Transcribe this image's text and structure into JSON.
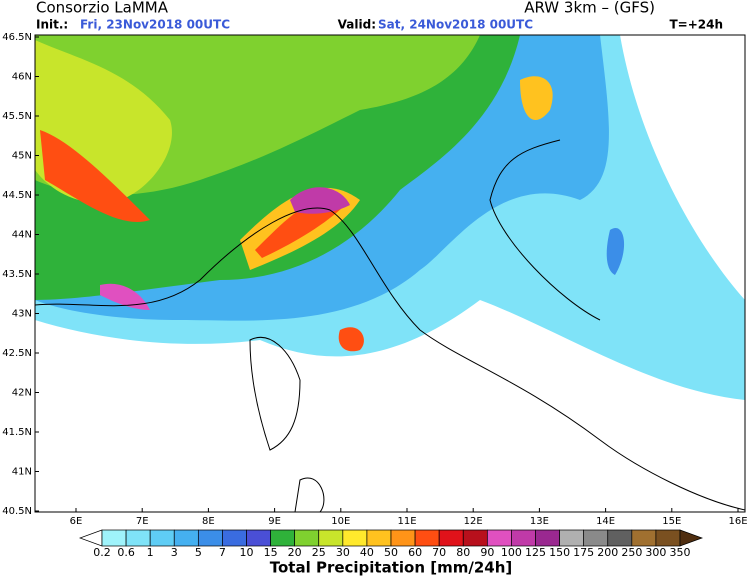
{
  "header": {
    "left_title": "Consorzio LaMMA",
    "init_label": "Init.:",
    "init_value": "Fri, 23Nov2018 00UTC",
    "right_title": "ARW 3km – (GFS)",
    "valid_label": "Valid:",
    "valid_value": "Sat, 24Nov2018 00UTC",
    "lead_time": "T=+24h"
  },
  "map": {
    "lon_labels": [
      "6E",
      "7E",
      "8E",
      "9E",
      "10E",
      "11E",
      "12E",
      "13E",
      "14E",
      "15E",
      "16E"
    ],
    "lat_labels": [
      "46.5N",
      "46N",
      "45.5N",
      "45N",
      "44.5N",
      "44N",
      "43.5N",
      "43N",
      "42.5N",
      "42N",
      "41.5N",
      "41N",
      "40.5N"
    ]
  },
  "colorbar": {
    "levels": [
      "0.2",
      "0.6",
      "1",
      "3",
      "5",
      "7",
      "10",
      "15",
      "20",
      "25",
      "30",
      "40",
      "50",
      "60",
      "70",
      "80",
      "90",
      "100",
      "125",
      "150",
      "175",
      "200",
      "250",
      "300",
      "350"
    ],
    "colors": [
      "#ffffff",
      "#9ff3fb",
      "#7fe3f8",
      "#5fcdf5",
      "#45b0f0",
      "#3b8ee8",
      "#3a6ce0",
      "#4a4fd6",
      "#2fb23a",
      "#7fd12f",
      "#c8e52b",
      "#ffe92c",
      "#ffc21f",
      "#ff9418",
      "#ff4e12",
      "#e0121a",
      "#b8101c",
      "#e050c0",
      "#c03aa8",
      "#9a2890",
      "#b0b0b0",
      "#8a8a8a",
      "#606060",
      "#a07030",
      "#7a5020",
      "#502e10"
    ],
    "title": "Total Precipitation [mm/24h]"
  }
}
